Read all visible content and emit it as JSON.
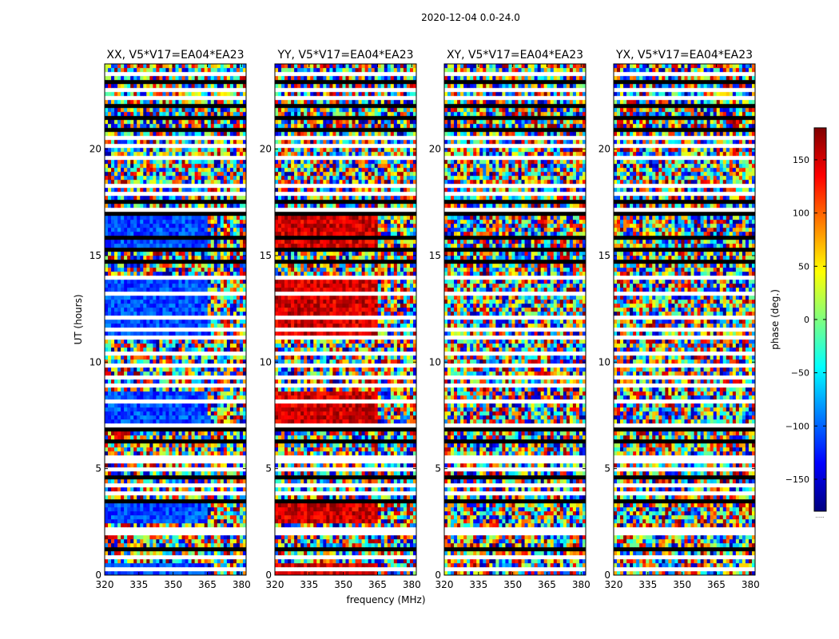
{
  "chart_data": {
    "type": "heatmap",
    "title": "2020-12-04 0.0-24.0",
    "xlabel": "frequency (MHz)",
    "ylabel": "UT (hours)",
    "xlim": [
      320,
      382
    ],
    "ylim": [
      0,
      24
    ],
    "x_ticks": [
      320,
      335,
      350,
      365,
      380
    ],
    "y_ticks": [
      0,
      5,
      10,
      15,
      20
    ],
    "panels": [
      {
        "name": "XX, V5*V17=EA04*EA23",
        "coherent_phase_deg": -110,
        "break_freq_mhz": 364
      },
      {
        "name": "YY, V5*V17=EA04*EA23",
        "coherent_phase_deg": 150,
        "break_freq_mhz": 364
      },
      {
        "name": "XY, V5*V17=EA04*EA23",
        "coherent_phase_deg": null,
        "break_freq_mhz": null
      },
      {
        "name": "YX, V5*V17=EA04*EA23",
        "coherent_phase_deg": null,
        "break_freq_mhz": null
      }
    ],
    "coherent_intervals_ut_hours": [
      [
        2.4,
        3.6
      ],
      [
        7.2,
        8.6
      ],
      [
        11.0,
        14.0
      ],
      [
        15.3,
        17.3
      ],
      [
        0.0,
        0.6
      ]
    ],
    "flagged_rows_ut_hours": [
      0.3,
      0.9,
      1.2,
      1.9,
      2.2,
      3.4,
      3.8,
      4.2,
      4.6,
      5.0,
      5.3,
      5.5,
      6.2,
      6.8,
      7.0,
      8.2,
      8.9,
      9.3,
      9.8,
      10.4,
      11.1,
      11.5,
      12.1,
      13.2,
      13.9,
      14.7,
      15.2,
      15.9,
      16.9,
      17.2,
      17.6,
      17.9,
      18.3,
      19.6,
      20.1,
      20.5,
      20.9,
      21.4,
      22.0,
      22.4,
      22.7,
      23.2,
      23.6
    ],
    "colorbar": {
      "label": "phase (deg.)",
      "range": [
        -180,
        180
      ],
      "ticks": [
        -150,
        -100,
        -50,
        0,
        50,
        100,
        150
      ],
      "colormap": "jet",
      "footnote": "......"
    }
  }
}
